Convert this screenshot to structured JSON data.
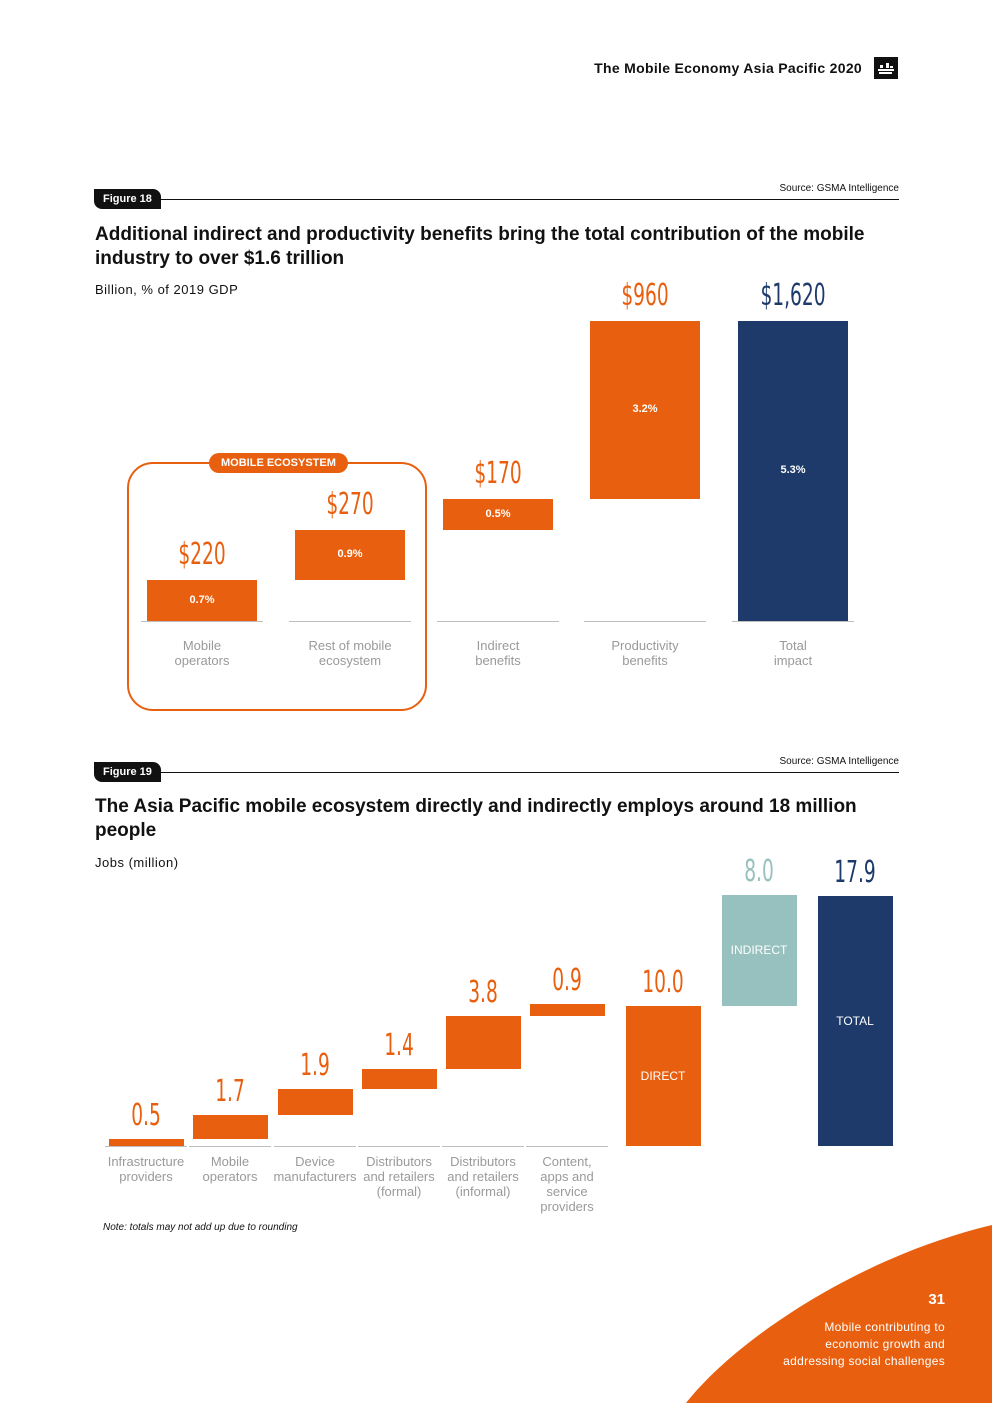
{
  "header": {
    "title": "The Mobile Economy Asia Pacific 2020",
    "logo_icon": "gsma-logo-icon"
  },
  "colors": {
    "orange": "#e8600f",
    "navy": "#1d3a6b",
    "teal": "#96c1bf",
    "grey": "#9a9a9a"
  },
  "figure18": {
    "badge": "Figure 18",
    "source": "Source: GSMA Intelligence",
    "title": "Additional indirect and productivity benefits bring the total contribution of the mobile industry to over $1.6 trillion",
    "unit": "Billion, % of 2019 GDP",
    "group_label": "MOBILE ECOSYSTEM"
  },
  "figure19": {
    "badge": "Figure 19",
    "source": "Source: GSMA Intelligence",
    "title": "The Asia Pacific mobile ecosystem directly and indirectly employs around 18 million people",
    "unit": "Jobs (million)",
    "note": "Note: totals may not add up due to rounding"
  },
  "chart_data": [
    {
      "type": "bar",
      "subtype": "waterfall",
      "title": "Additional indirect and productivity benefits bring the total contribution of the mobile industry to over $1.6 trillion",
      "ylabel": "Billion, % of 2019 GDP",
      "categories": [
        "Mobile\noperators",
        "Rest of mobile\necosystem",
        "Indirect\nbenefits",
        "Productivity\nbenefits",
        "Total\nimpact"
      ],
      "values": [
        220,
        270,
        170,
        960,
        1620
      ],
      "value_labels": [
        "$220",
        "$270",
        "$170",
        "$960",
        "$1,620"
      ],
      "gdp_share_labels": [
        "0.7%",
        "0.9%",
        "0.5%",
        "3.2%",
        "5.3%"
      ],
      "bar_kinds": [
        "step",
        "step",
        "step",
        "step",
        "total"
      ],
      "ylim": [
        0,
        1620
      ]
    },
    {
      "type": "bar",
      "subtype": "waterfall",
      "title": "The Asia Pacific mobile ecosystem directly and indirectly employs around 18 million people",
      "ylabel": "Jobs (million)",
      "categories": [
        "Infrastructure\nproviders",
        "Mobile\noperators",
        "Device\nmanufacturers",
        "Distributors\nand retailers\n(formal)",
        "Distributors\nand retailers\n(informal)",
        "Content,\napps and\nservice\nproviders",
        "",
        "",
        ""
      ],
      "values": [
        0.5,
        1.7,
        1.9,
        1.4,
        3.8,
        0.9,
        10.0,
        8.0,
        17.9
      ],
      "value_labels": [
        "0.5",
        "1.7",
        "1.9",
        "1.4",
        "3.8",
        "0.9",
        "10.0",
        "8.0",
        "17.9"
      ],
      "inner_labels": [
        "",
        "",
        "",
        "",
        "",
        "",
        "DIRECT",
        "INDIRECT",
        "TOTAL"
      ],
      "bar_kinds": [
        "step",
        "step",
        "step",
        "step",
        "step",
        "step",
        "subtotal",
        "indirect",
        "total"
      ],
      "ylim": [
        0,
        17.9
      ]
    }
  ],
  "footer": {
    "page_number": "31",
    "lines": [
      "Mobile contributing to",
      "economic growth and",
      "addressing social challenges"
    ]
  }
}
